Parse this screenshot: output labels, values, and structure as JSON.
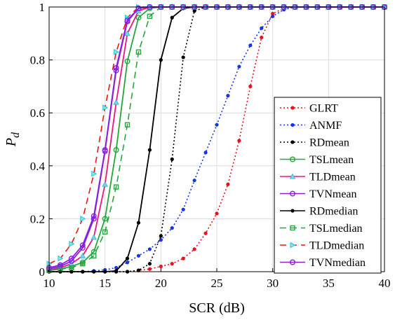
{
  "chart_data": {
    "type": "line",
    "xlabel": "SCR (dB)",
    "ylabel_main": "P",
    "ylabel_sub": "d",
    "xlim": [
      10,
      40
    ],
    "ylim": [
      0,
      1
    ],
    "xticks": [
      "10",
      "15",
      "20",
      "25",
      "30",
      "35",
      "40"
    ],
    "yticks": [
      "0",
      "0.2",
      "0.4",
      "0.6",
      "0.8",
      "1"
    ],
    "grid": true,
    "legend_position": "bottom-right",
    "x": [
      10,
      11,
      12,
      13,
      14,
      15,
      16,
      17,
      18,
      19,
      20,
      21,
      22,
      23,
      24,
      25,
      26,
      27,
      28,
      29,
      30,
      31,
      32,
      33,
      34,
      35,
      36,
      37,
      38,
      39,
      40
    ],
    "series": [
      {
        "name": "GLRT",
        "color": "#e8121c",
        "dash": "2,3",
        "marker": "dot",
        "values": [
          0.0,
          0.0,
          0.0,
          0.0,
          0.0,
          0.0,
          0.0,
          0.0,
          0.005,
          0.01,
          0.02,
          0.03,
          0.05,
          0.085,
          0.145,
          0.22,
          0.33,
          0.495,
          0.7,
          0.885,
          0.975,
          0.995,
          1,
          1,
          1,
          1,
          1,
          1,
          1,
          1,
          1
        ]
      },
      {
        "name": "ANMF",
        "color": "#1636e6",
        "dash": "2,3",
        "marker": "dot",
        "values": [
          0.0,
          0.0,
          0.0,
          0.0,
          0.003,
          0.007,
          0.015,
          0.035,
          0.06,
          0.085,
          0.12,
          0.165,
          0.235,
          0.345,
          0.45,
          0.555,
          0.665,
          0.775,
          0.855,
          0.92,
          0.965,
          0.99,
          1,
          1,
          1,
          1,
          1,
          1,
          1,
          1,
          1
        ]
      },
      {
        "name": "RDmean",
        "color": "#000000",
        "dash": "2,3",
        "marker": "dot",
        "values": [
          0,
          0,
          0,
          0,
          0,
          0,
          0,
          0,
          0.005,
          0.03,
          0.135,
          0.425,
          0.81,
          0.985,
          1,
          1,
          1,
          1,
          1,
          1,
          1,
          1,
          1,
          1,
          1,
          1,
          1,
          1,
          1,
          1,
          1
        ]
      },
      {
        "name": "TSLmean",
        "color": "#24a63b",
        "dash": "",
        "marker": "circle",
        "values": [
          0.005,
          0.01,
          0.02,
          0.035,
          0.075,
          0.2,
          0.46,
          0.795,
          0.96,
          0.995,
          1,
          1,
          1,
          1,
          1,
          1,
          1,
          1,
          1,
          1,
          1,
          1,
          1,
          1,
          1,
          1,
          1,
          1,
          1,
          1,
          1
        ]
      },
      {
        "name": "TLDmean",
        "color": "#f0147d",
        "dash": "",
        "marker": "triangle",
        "values": [
          0.005,
          0.015,
          0.03,
          0.06,
          0.13,
          0.33,
          0.64,
          0.9,
          0.985,
          1,
          1,
          1,
          1,
          1,
          1,
          1,
          1,
          1,
          1,
          1,
          1,
          1,
          1,
          1,
          1,
          1,
          1,
          1,
          1,
          1,
          1
        ]
      },
      {
        "name": "TVNmean",
        "color": "#8a1ee0",
        "dash": "",
        "marker": "circle",
        "values": [
          0.01,
          0.02,
          0.04,
          0.09,
          0.2,
          0.455,
          0.76,
          0.945,
          0.995,
          1,
          1,
          1,
          1,
          1,
          1,
          1,
          1,
          1,
          1,
          1,
          1,
          1,
          1,
          1,
          1,
          1,
          1,
          1,
          1,
          1,
          1
        ]
      },
      {
        "name": "RDmedian",
        "color": "#000000",
        "dash": "",
        "marker": "dot",
        "values": [
          0,
          0,
          0,
          0,
          0,
          0,
          0.003,
          0.05,
          0.185,
          0.46,
          0.8,
          0.96,
          0.995,
          1,
          1,
          1,
          1,
          1,
          1,
          1,
          1,
          1,
          1,
          1,
          1,
          1,
          1,
          1,
          1,
          1,
          1
        ]
      },
      {
        "name": "TSLmedian",
        "color": "#24a63b",
        "dash": "9,6",
        "marker": "square",
        "values": [
          0.005,
          0.01,
          0.015,
          0.03,
          0.06,
          0.15,
          0.32,
          0.555,
          0.83,
          0.965,
          1,
          1,
          1,
          1,
          1,
          1,
          1,
          1,
          1,
          1,
          1,
          1,
          1,
          1,
          1,
          1,
          1,
          1,
          1,
          1,
          1
        ]
      },
      {
        "name": "TLDmedian",
        "color": "#f01414",
        "dash": "9,6",
        "marker": "triangle-right",
        "values": [
          0.03,
          0.05,
          0.105,
          0.2,
          0.37,
          0.62,
          0.83,
          0.96,
          1,
          1,
          1,
          1,
          1,
          1,
          1,
          1,
          1,
          1,
          1,
          1,
          1,
          1,
          1,
          1,
          1,
          1,
          1,
          1,
          1,
          1,
          1
        ]
      },
      {
        "name": "TVNmedian",
        "color": "#8a1ee0",
        "dash": "",
        "marker": "circle",
        "values": [
          0.015,
          0.025,
          0.05,
          0.1,
          0.21,
          0.46,
          0.77,
          0.95,
          0.995,
          1,
          1,
          1,
          1,
          1,
          1,
          1,
          1,
          1,
          1,
          1,
          1,
          1,
          1,
          1,
          1,
          1,
          1,
          1,
          1,
          1,
          1
        ]
      }
    ]
  }
}
